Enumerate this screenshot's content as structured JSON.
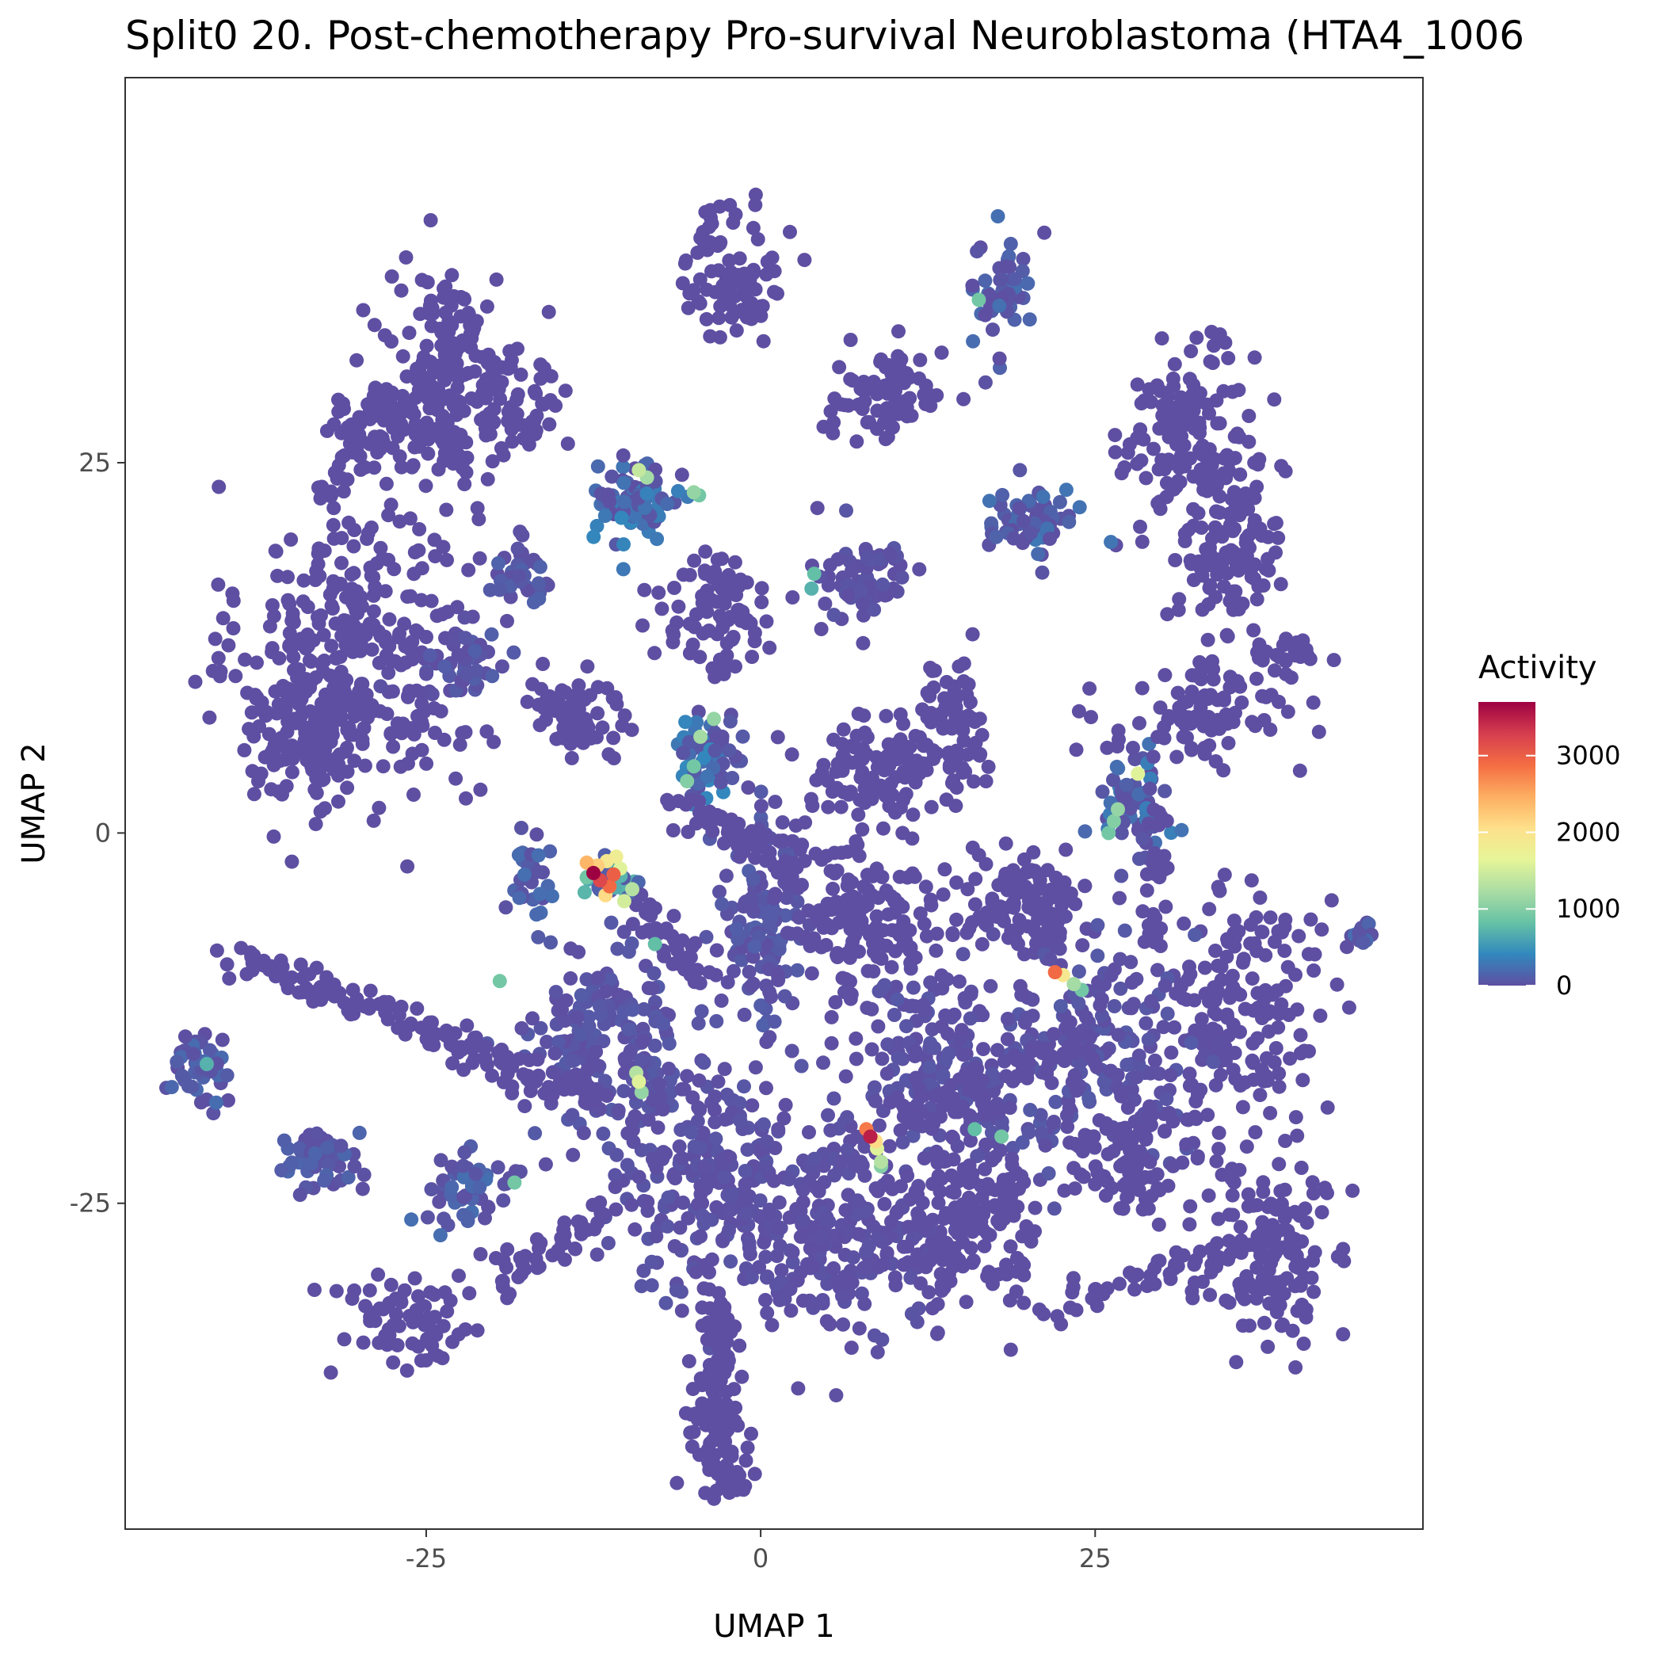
{
  "chart_data": {
    "type": "scatter",
    "title": "Split0 20. Post-chemotherapy Pro-survival Neuroblastoma (HTA4_1006",
    "xlabel": "UMAP 1",
    "ylabel": "UMAP 2",
    "xlim": [
      -47.5,
      49.5
    ],
    "ylim": [
      -47,
      51
    ],
    "x_ticks": [
      -25,
      0,
      25
    ],
    "x_tick_labels": [
      "-25",
      "0",
      "25"
    ],
    "y_ticks": [
      25,
      0,
      -25
    ],
    "y_tick_labels": [
      "25",
      "0",
      "-25"
    ],
    "grid": false,
    "legend_position": "right",
    "color_scale": {
      "title": "Activity",
      "min": 0,
      "max": 3700,
      "ticks": [
        3000,
        2000,
        1000,
        0
      ],
      "tick_labels": [
        "3000",
        "2000",
        "1000",
        "0"
      ],
      "palette": [
        "#5e4fa2",
        "#3288bd",
        "#66c2a5",
        "#abdda4",
        "#e6f598",
        "#fee08b",
        "#fdae61",
        "#f46d43",
        "#d53e4f",
        "#9e0142"
      ]
    },
    "clusters": [
      {
        "x": -30,
        "y": 12.5,
        "sx": 7,
        "sy": 9,
        "n": 320,
        "activity": 0
      },
      {
        "x": -34,
        "y": 7,
        "sx": 4,
        "sy": 4,
        "n": 120,
        "activity": 0
      },
      {
        "x": -23,
        "y": 32,
        "sx": 4,
        "sy": 5,
        "n": 150,
        "activity": 0
      },
      {
        "x": -28,
        "y": 27,
        "sx": 4,
        "sy": 2,
        "n": 70,
        "activity": 0
      },
      {
        "x": -18,
        "y": 28.5,
        "sx": 2.5,
        "sy": 3,
        "n": 50,
        "activity": 0
      },
      {
        "x": -2,
        "y": 38,
        "sx": 3,
        "sy": 4,
        "n": 90,
        "activity": 0
      },
      {
        "x": 18,
        "y": 36.5,
        "sx": 2,
        "sy": 3.5,
        "n": 50,
        "activity": 200
      },
      {
        "x": 9.5,
        "y": 29.5,
        "sx": 3.5,
        "sy": 2.5,
        "n": 80,
        "activity": 0
      },
      {
        "x": 32,
        "y": 26.5,
        "sx": 4,
        "sy": 5,
        "n": 150,
        "activity": 0
      },
      {
        "x": 35,
        "y": 19,
        "sx": 3,
        "sy": 4,
        "n": 110,
        "activity": 0
      },
      {
        "x": -9.5,
        "y": 22.5,
        "sx": 2.5,
        "sy": 2.5,
        "n": 80,
        "activity": 350
      },
      {
        "x": 20,
        "y": 21,
        "sx": 3,
        "sy": 1.8,
        "n": 60,
        "activity": 250
      },
      {
        "x": -18,
        "y": 17.5,
        "sx": 1.7,
        "sy": 1.7,
        "n": 35,
        "activity": 150
      },
      {
        "x": -22,
        "y": 11,
        "sx": 2.5,
        "sy": 2,
        "n": 45,
        "activity": 100
      },
      {
        "x": -3,
        "y": 15,
        "sx": 3.5,
        "sy": 3.5,
        "n": 90,
        "activity": 0
      },
      {
        "x": 7.5,
        "y": 17,
        "sx": 3,
        "sy": 3,
        "n": 70,
        "activity": 50
      },
      {
        "x": -14,
        "y": 8,
        "sx": 3,
        "sy": 3,
        "n": 70,
        "activity": 0
      },
      {
        "x": -4,
        "y": 5,
        "sx": 2,
        "sy": 2.5,
        "n": 60,
        "activity": 400
      },
      {
        "x": 8,
        "y": 4,
        "sx": 4,
        "sy": 3,
        "n": 90,
        "activity": 0
      },
      {
        "x": 14,
        "y": 7,
        "sx": 3,
        "sy": 4,
        "n": 80,
        "activity": 0
      },
      {
        "x": 28,
        "y": 2,
        "sx": 2,
        "sy": 3,
        "n": 60,
        "activity": 300
      },
      {
        "x": 33,
        "y": 8,
        "sx": 6,
        "sy": 3,
        "n": 90,
        "activity": 0
      },
      {
        "x": -17,
        "y": -3,
        "sx": 1.5,
        "sy": 2.5,
        "n": 35,
        "activity": 200
      },
      {
        "x": -11,
        "y": -3,
        "sx": 1.5,
        "sy": 1.5,
        "n": 30,
        "activity": 900
      },
      {
        "x": 0,
        "y": -6,
        "sx": 2.5,
        "sy": 6,
        "n": 130,
        "activity": 100
      },
      {
        "x": 8,
        "y": -6,
        "sx": 5,
        "sy": 4,
        "n": 160,
        "activity": 0
      },
      {
        "x": 20,
        "y": -5,
        "sx": 4,
        "sy": 3,
        "n": 110,
        "activity": 0
      },
      {
        "x": 36,
        "y": -12,
        "sx": 5,
        "sy": 7,
        "n": 180,
        "activity": 0
      },
      {
        "x": 25,
        "y": -15,
        "sx": 6,
        "sy": 6,
        "n": 200,
        "activity": 80
      },
      {
        "x": 14,
        "y": -15,
        "sx": 5,
        "sy": 5,
        "n": 170,
        "activity": 60
      },
      {
        "x": -12,
        "y": -14,
        "sx": 5,
        "sy": 5,
        "n": 180,
        "activity": 80
      },
      {
        "x": -4,
        "y": -23,
        "sx": 6,
        "sy": 7,
        "n": 260,
        "activity": 50
      },
      {
        "x": 6,
        "y": -27,
        "sx": 6,
        "sy": 6,
        "n": 240,
        "activity": 30
      },
      {
        "x": 15,
        "y": -26,
        "sx": 5,
        "sy": 5,
        "n": 170,
        "activity": 0
      },
      {
        "x": 38,
        "y": -28,
        "sx": 4,
        "sy": 5,
        "n": 140,
        "activity": 0
      },
      {
        "x": 28,
        "y": -22,
        "sx": 4,
        "sy": 3,
        "n": 90,
        "activity": 0
      },
      {
        "x": -22,
        "y": -24,
        "sx": 2.5,
        "sy": 2,
        "n": 50,
        "activity": 200
      },
      {
        "x": -33,
        "y": -22,
        "sx": 2.5,
        "sy": 2,
        "n": 50,
        "activity": 150
      },
      {
        "x": -42,
        "y": -16,
        "sx": 2,
        "sy": 2,
        "n": 50,
        "activity": 200
      },
      {
        "x": -26,
        "y": -33,
        "sx": 4,
        "sy": 2.5,
        "n": 70,
        "activity": 0
      },
      {
        "x": -3,
        "y": -40,
        "sx": 2,
        "sy": 4,
        "n": 70,
        "activity": 0
      },
      {
        "x": 45,
        "y": -7,
        "sx": 0.8,
        "sy": 1,
        "n": 12,
        "activity": 200
      },
      {
        "x": 39,
        "y": 12,
        "sx": 2,
        "sy": 1,
        "n": 25,
        "activity": 0
      }
    ],
    "bridges": [
      {
        "from": [
          -40,
          -8
        ],
        "to": [
          -12,
          -18
        ],
        "n": 140,
        "spread": 1.2
      },
      {
        "from": [
          -28,
          30
        ],
        "to": [
          -33,
          22
        ],
        "n": 40,
        "spread": 0.8
      },
      {
        "from": [
          -25,
          30
        ],
        "to": [
          -22,
          24
        ],
        "n": 30,
        "spread": 0.6
      },
      {
        "from": [
          -7,
          2
        ],
        "to": [
          3,
          -2
        ],
        "n": 60,
        "spread": 1.5
      },
      {
        "from": [
          -4,
          -30
        ],
        "to": [
          -2,
          -45
        ],
        "n": 70,
        "spread": 1.2
      },
      {
        "from": [
          -9,
          -5
        ],
        "to": [
          -4,
          -10
        ],
        "n": 40,
        "spread": 1.2
      },
      {
        "from": [
          10,
          -20
        ],
        "to": [
          25,
          -14
        ],
        "n": 80,
        "spread": 2
      },
      {
        "from": [
          29,
          -8
        ],
        "to": [
          30,
          2
        ],
        "n": 30,
        "spread": 1
      },
      {
        "from": [
          -20,
          -30
        ],
        "to": [
          -10,
          -25
        ],
        "n": 50,
        "spread": 1.5
      },
      {
        "from": [
          22,
          -32
        ],
        "to": [
          36,
          -28
        ],
        "n": 50,
        "spread": 1.2
      }
    ],
    "highlights": [
      {
        "x": -12.5,
        "y": -2.7,
        "value": 3700
      },
      {
        "x": -12,
        "y": -3.2,
        "value": 3200
      },
      {
        "x": -11.3,
        "y": -3.6,
        "value": 2900
      },
      {
        "x": -11,
        "y": -2.8,
        "value": 3000
      },
      {
        "x": -12.2,
        "y": -2.2,
        "value": 2200
      },
      {
        "x": -11.5,
        "y": -1.9,
        "value": 1900
      },
      {
        "x": -10.5,
        "y": -2.4,
        "value": 1600
      },
      {
        "x": -10.2,
        "y": -4.6,
        "value": 1500
      },
      {
        "x": -9.6,
        "y": -3.8,
        "value": 1300
      },
      {
        "x": -11.6,
        "y": -4.2,
        "value": 2100
      },
      {
        "x": -13,
        "y": -2,
        "value": 2400
      },
      {
        "x": -10.8,
        "y": -1.6,
        "value": 1800
      },
      {
        "x": 8.2,
        "y": -20.5,
        "value": 3500
      },
      {
        "x": 7.9,
        "y": -20,
        "value": 2800
      },
      {
        "x": 8.6,
        "y": -20.8,
        "value": 2100
      },
      {
        "x": 8.7,
        "y": -21.3,
        "value": 1600
      },
      {
        "x": 9,
        "y": -22.2,
        "value": 1300
      },
      {
        "x": 22,
        "y": -9.4,
        "value": 2900
      },
      {
        "x": 22.6,
        "y": -9.6,
        "value": 1900
      },
      {
        "x": 23.4,
        "y": -10.2,
        "value": 1200
      },
      {
        "x": 24,
        "y": -10.6,
        "value": 900
      },
      {
        "x": -9.1,
        "y": -16.8,
        "value": 1600
      },
      {
        "x": -9.3,
        "y": -16.2,
        "value": 1300
      },
      {
        "x": -8.9,
        "y": -17.5,
        "value": 1100
      },
      {
        "x": -9.1,
        "y": 24.5,
        "value": 1400
      },
      {
        "x": -8.5,
        "y": 24,
        "value": 1200
      },
      {
        "x": -5,
        "y": 23,
        "value": 1100
      },
      {
        "x": -4.6,
        "y": 22.8,
        "value": 900
      },
      {
        "x": -4.5,
        "y": 6.5,
        "value": 1200
      },
      {
        "x": -3.5,
        "y": 7.7,
        "value": 1100
      },
      {
        "x": -5,
        "y": 4.5,
        "value": 900
      },
      {
        "x": -5.5,
        "y": 3.5,
        "value": 1000
      },
      {
        "x": 28.2,
        "y": 4,
        "value": 1600
      },
      {
        "x": 26.7,
        "y": 1.6,
        "value": 1100
      },
      {
        "x": 26.4,
        "y": 0.8,
        "value": 1000
      },
      {
        "x": 26,
        "y": 0,
        "value": 900
      },
      {
        "x": 16.3,
        "y": 36,
        "value": 900
      },
      {
        "x": -19.5,
        "y": -10,
        "value": 900
      },
      {
        "x": 9,
        "y": -22.5,
        "value": 1000
      },
      {
        "x": 18,
        "y": -20.5,
        "value": 900
      },
      {
        "x": 16,
        "y": -20,
        "value": 800
      },
      {
        "x": -18.4,
        "y": -23.6,
        "value": 900
      },
      {
        "x": -41.4,
        "y": -15.6,
        "value": 700
      },
      {
        "x": 4,
        "y": 17.5,
        "value": 800
      },
      {
        "x": 3.8,
        "y": 16.5,
        "value": 700
      },
      {
        "x": -7.9,
        "y": -7.5,
        "value": 800
      }
    ]
  }
}
